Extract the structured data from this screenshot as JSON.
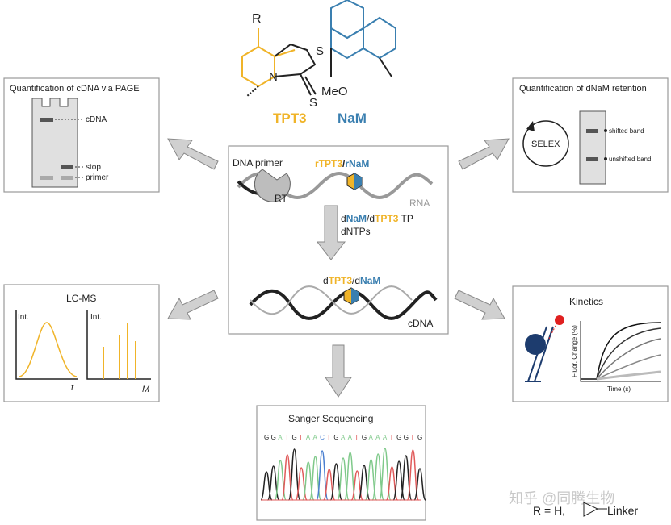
{
  "colors": {
    "tpt3": "#f0b429",
    "nam": "#3a7fb0",
    "gray": "#9a9a9a",
    "dark": "#222222",
    "red": "#e02020",
    "navy": "#1d3c6e"
  },
  "structures": {
    "r_label": "R",
    "n_atom": "N",
    "s_ring": "S",
    "s_thione": "S",
    "meo": "MeO",
    "tpt3_label": "TPT3",
    "nam_label": "NaM"
  },
  "center": {
    "dna_primer": "DNA primer",
    "rt": "RT",
    "rna": "RNA",
    "top_pair": {
      "p1": "r",
      "p2": "TPT3",
      "p3": "/",
      "p4": "r",
      "p5": "NaM"
    },
    "reagents": {
      "p1": "d",
      "p2": "NaM",
      "p3": "/d",
      "p4": "TPT3",
      "p5": " TP",
      "line2": "dNTPs"
    },
    "bottom_pair": {
      "p1": "d",
      "p2": "TPT3",
      "p3": "/d",
      "p4": "NaM"
    },
    "cdna": "cDNA"
  },
  "page_panel": {
    "title": "Quantification of cDNA via PAGE",
    "cdna": "cDNA",
    "stop": "stop",
    "primer": "primer"
  },
  "retention_panel": {
    "title": "Quantification of dNaM retention",
    "selex": "SELEX",
    "shifted": "shifted band",
    "unshifted": "unshifted band"
  },
  "lcms_panel": {
    "title": "LC-MS",
    "y1": "Int.",
    "x1": "t",
    "y2": "Int.",
    "x2": "M"
  },
  "kinetics_panel": {
    "title": "Kinetics",
    "ylabel": "Fluor. Change (%)",
    "xlabel": "Time (s)"
  },
  "sanger_panel": {
    "title": "Sanger Sequencing",
    "sequence": [
      "G",
      "G",
      "A",
      "T",
      "G",
      "T",
      "A",
      "A",
      "C",
      "T",
      "G",
      "A",
      "A",
      "T",
      "G",
      "A",
      "A",
      "A",
      "T",
      "G",
      "G",
      "T",
      "G"
    ]
  },
  "footnote": {
    "r_def": "R = H,",
    "linker": "Linker",
    "watermark": "知乎 @同腾生物"
  }
}
